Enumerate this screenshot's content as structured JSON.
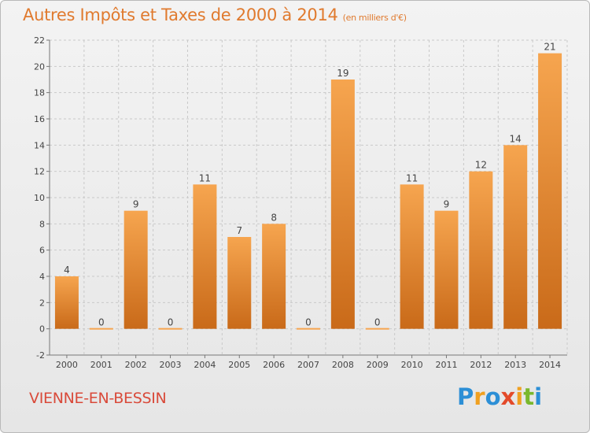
{
  "header": {
    "title": "Autres Impôts et Taxes de 2000 à 2014",
    "subtitle": "(en milliers d'€)"
  },
  "footer": {
    "place": "VIENNE-EN-BESSIN",
    "logo_letters": [
      {
        "ch": "P",
        "color": "#2c8fd6"
      },
      {
        "ch": "r",
        "color": "#f0a020"
      },
      {
        "ch": "o",
        "color": "#2c8fd6"
      },
      {
        "ch": "x",
        "color": "#e34a2a"
      },
      {
        "ch": "i",
        "color": "#f0a020"
      },
      {
        "ch": "t",
        "color": "#7ab82d"
      },
      {
        "ch": "i",
        "color": "#2c8fd6"
      }
    ]
  },
  "colors": {
    "accent": "#e07a2e",
    "bar_light": "#f6a54f",
    "bar_dark": "#c96a19",
    "place": "#d94a3a"
  },
  "chart_data": {
    "type": "bar",
    "categories": [
      "2000",
      "2001",
      "2002",
      "2003",
      "2004",
      "2005",
      "2006",
      "2007",
      "2008",
      "2009",
      "2010",
      "2011",
      "2012",
      "2013",
      "2014"
    ],
    "values": [
      4,
      0,
      9,
      0,
      11,
      7,
      8,
      0,
      19,
      0,
      11,
      9,
      12,
      14,
      21
    ],
    "data_labels": [
      "4",
      "0",
      "9",
      "0",
      "11",
      "7",
      "8",
      "0",
      "19",
      "0",
      "11",
      "9",
      "12",
      "14",
      "21"
    ],
    "title": "Autres Impôts et Taxes de 2000 à 2014",
    "xlabel": "",
    "ylabel": "",
    "ylim": [
      -2,
      22
    ],
    "yticks": [
      -2,
      0,
      2,
      4,
      6,
      8,
      10,
      12,
      14,
      16,
      18,
      20,
      22
    ],
    "grid": true,
    "legend": "none"
  }
}
